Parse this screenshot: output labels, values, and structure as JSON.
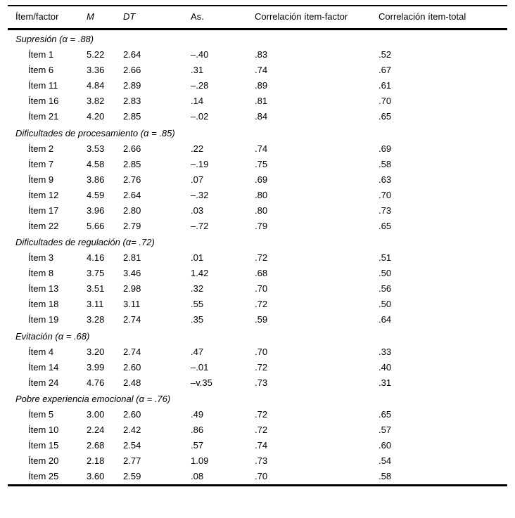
{
  "table": {
    "columns": {
      "item_factor": "Ítem/factor",
      "m": "M",
      "dt": "DT",
      "as": "As.",
      "corr_item_factor": "Correlación ítem-factor",
      "corr_item_total": "Correlación ítem-total"
    },
    "sections": [
      {
        "header": "Supresión (α = .88)",
        "rows": [
          [
            "Ítem 1",
            "5.22",
            "2.64",
            "–.40",
            ".83",
            ".52"
          ],
          [
            "Ítem 6",
            "3.36",
            "2.66",
            ".31",
            ".74",
            ".67"
          ],
          [
            "Ítem 11",
            "4.84",
            "2.89",
            "–.28",
            ".89",
            ".61"
          ],
          [
            "Ítem 16",
            "3.82",
            "2.83",
            ".14",
            ".81",
            ".70"
          ],
          [
            "Ítem 21",
            "4.20",
            "2.85",
            "–.02",
            ".84",
            ".65"
          ]
        ]
      },
      {
        "header": "Dificultades de procesamiento (α = .85)",
        "rows": [
          [
            "Ítem 2",
            "3.53",
            "2.66",
            ".22",
            ".74",
            ".69"
          ],
          [
            "Ítem 7",
            "4.58",
            "2.85",
            "–.19",
            ".75",
            ".58"
          ],
          [
            "Ítem 9",
            "3.86",
            "2.76",
            ".07",
            ".69",
            ".63"
          ],
          [
            "Ítem 12",
            "4.59",
            "2.64",
            "–.32",
            ".80",
            ".70"
          ],
          [
            "Ítem 17",
            "3.96",
            "2.80",
            ".03",
            ".80",
            ".73"
          ],
          [
            "Ítem 22",
            "5.66",
            "2.79",
            "–.72",
            ".79",
            ".65"
          ]
        ]
      },
      {
        "header": "Dificultades de regulación (α= .72)",
        "rows": [
          [
            "Ítem 3",
            "4.16",
            "2.81",
            ".01",
            ".72",
            ".51"
          ],
          [
            "Ítem 8",
            "3.75",
            "3.46",
            "1.42",
            ".68",
            ".50"
          ],
          [
            "Ítem 13",
            "3.51",
            "2.98",
            ".32",
            ".70",
            ".56"
          ],
          [
            "Ítem 18",
            "3.11",
            "3.11",
            ".55",
            ".72",
            ".50"
          ],
          [
            "Ítem 19",
            "3.28",
            "2.74",
            ".35",
            ".59",
            ".64"
          ]
        ]
      },
      {
        "header": "Evitación (α = .68)",
        "rows": [
          [
            "Ítem 4",
            "3.20",
            "2.74",
            ".47",
            ".70",
            ".33"
          ],
          [
            "Ítem 14",
            "3.99",
            "2.60",
            "–.01",
            ".72",
            ".40"
          ],
          [
            "Ítem 24",
            "4.76",
            "2.48",
            "–v.35",
            ".73",
            ".31"
          ]
        ]
      },
      {
        "header": "Pobre experiencia emocional (α = .76)",
        "rows": [
          [
            "Ítem 5",
            "3.00",
            "2.60",
            ".49",
            ".72",
            ".65"
          ],
          [
            "Ítem 10",
            "2.24",
            "2.42",
            ".86",
            ".72",
            ".57"
          ],
          [
            "Ítem 15",
            "2.68",
            "2.54",
            ".57",
            ".74",
            ".60"
          ],
          [
            "Ítem 20",
            "2.18",
            "2.77",
            "1.09",
            ".73",
            ".54"
          ],
          [
            "Ítem 25",
            "3.60",
            "2.59",
            ".08",
            ".70",
            ".58"
          ]
        ]
      }
    ]
  }
}
